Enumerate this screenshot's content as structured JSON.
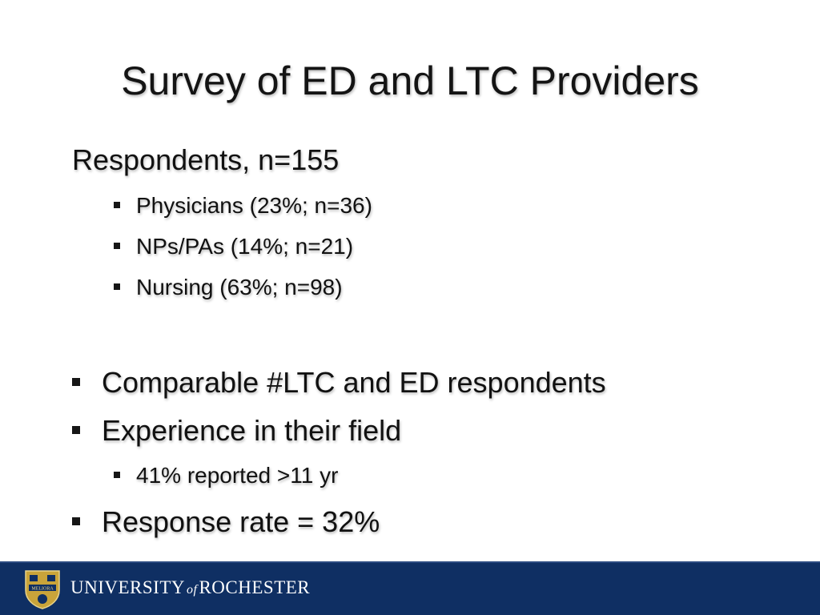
{
  "slide": {
    "title": "Survey of ED and LTC Providers",
    "respondents_heading": "Respondents, n=155",
    "respondent_breakdown": [
      "Physicians (23%; n=36)",
      "NPs/PAs (14%; n=21)",
      "Nursing (63%; n=98)"
    ],
    "points": [
      {
        "text": "Comparable  #LTC and ED respondents"
      },
      {
        "text": "Experience in their field",
        "sub": "41% reported >11 yr"
      },
      {
        "text": "Response rate = 32%"
      }
    ]
  },
  "footer": {
    "university_name_part1": "UNIVERSITY",
    "university_name_of": "of",
    "university_name_part2": "ROCHESTER",
    "seal_text": "MELIORA",
    "colors": {
      "band": "#0f2f63",
      "seal_gold": "#c9a43a"
    }
  }
}
